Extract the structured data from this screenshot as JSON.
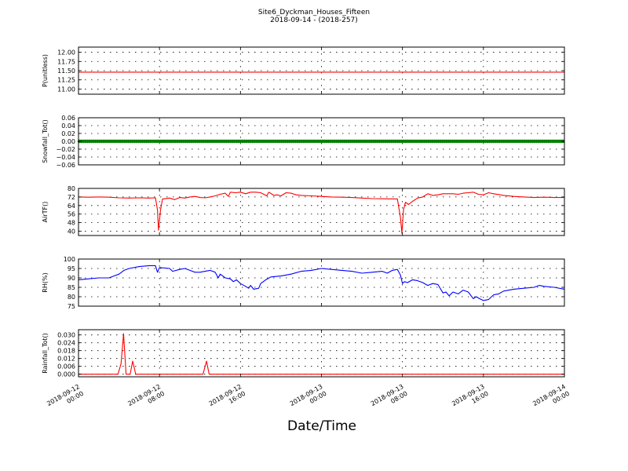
{
  "title": "Site6_Dyckman_Houses_Fifteen",
  "subtitle": "2018-09-14 - (2018-257)",
  "xlabel": "Date/Time",
  "colors": {
    "red": "#ff0000",
    "green": "#008000",
    "blue": "#0000ff",
    "axis": "#000000"
  },
  "chart_data": [
    {
      "type": "line",
      "ylabel": "P(unitless)",
      "ylim": [
        10.86,
        12.14
      ],
      "yticks": [
        11.0,
        11.25,
        11.5,
        11.75,
        12.0
      ],
      "ytick_labels": [
        "11.00",
        "11.25",
        "11.50",
        "11.75",
        "12.00"
      ],
      "grid": true,
      "series": [
        {
          "color": "#ff0000",
          "points": [
            [
              0,
              11.46
            ],
            [
              48,
              11.46
            ]
          ]
        }
      ]
    },
    {
      "type": "line",
      "ylabel": "Snowfall_Tot()",
      "ylim": [
        -0.06,
        0.06
      ],
      "yticks": [
        -0.06,
        -0.04,
        -0.02,
        0.0,
        0.02,
        0.04,
        0.06
      ],
      "ytick_labels": [
        "−0.06",
        "−0.04",
        "−0.02",
        "0.00",
        "0.02",
        "0.04",
        "0.06"
      ],
      "grid": true,
      "series": [
        {
          "color": "#008000",
          "dense_markers": true,
          "points": [
            [
              0,
              0.0
            ],
            [
              48,
              0.0
            ]
          ]
        }
      ]
    },
    {
      "type": "line",
      "ylabel": "AirTF()",
      "ylim": [
        36,
        80
      ],
      "yticks": [
        40,
        48,
        56,
        64,
        72,
        80
      ],
      "ytick_labels": [
        "40",
        "48",
        "56",
        "64",
        "72",
        "80"
      ],
      "grid": true,
      "series": [
        {
          "color": "#ff0000",
          "points": [
            [
              0,
              72.0
            ],
            [
              1,
              71.8
            ],
            [
              2,
              72.0
            ],
            [
              3,
              71.8
            ],
            [
              4,
              71.2
            ],
            [
              5,
              71.0
            ],
            [
              6,
              71.2
            ],
            [
              7,
              71.0
            ],
            [
              7.6,
              71.2
            ],
            [
              7.8,
              60.0
            ],
            [
              7.9,
              41.0
            ],
            [
              8.1,
              60.0
            ],
            [
              8.3,
              70.0
            ],
            [
              9,
              71.0
            ],
            [
              9.5,
              69.5
            ],
            [
              10,
              71.5
            ],
            [
              10.5,
              71.0
            ],
            [
              11,
              72.0
            ],
            [
              11.5,
              72.5
            ],
            [
              12,
              71.5
            ],
            [
              12.5,
              71.2
            ],
            [
              13,
              72.0
            ],
            [
              13.5,
              73.0
            ],
            [
              14,
              74.5
            ],
            [
              14.5,
              75.5
            ],
            [
              14.8,
              72.5
            ],
            [
              15,
              76.5
            ],
            [
              15.5,
              76.0
            ],
            [
              16,
              76.5
            ],
            [
              16.5,
              75.0
            ],
            [
              17,
              76.5
            ],
            [
              17.5,
              76.5
            ],
            [
              18,
              76.0
            ],
            [
              18.3,
              74.5
            ],
            [
              18.6,
              73.0
            ],
            [
              18.8,
              76.5
            ],
            [
              19.3,
              73.5
            ],
            [
              19.6,
              74.0
            ],
            [
              20,
              73.0
            ],
            [
              20.5,
              76.0
            ],
            [
              21,
              75.5
            ],
            [
              21.5,
              74.0
            ],
            [
              22,
              73.5
            ],
            [
              23,
              73.0
            ],
            [
              24,
              72.5
            ],
            [
              25,
              72.0
            ],
            [
              26,
              71.8
            ],
            [
              27,
              71.5
            ],
            [
              28,
              71.0
            ],
            [
              29,
              70.5
            ],
            [
              30,
              70.3
            ],
            [
              31,
              70.2
            ],
            [
              31.5,
              70.2
            ],
            [
              31.8,
              53.0
            ],
            [
              31.95,
              38.0
            ],
            [
              32.1,
              60.0
            ],
            [
              32.3,
              67.0
            ],
            [
              32.6,
              65.0
            ],
            [
              33,
              68.0
            ],
            [
              33.5,
              71.0
            ],
            [
              34,
              72.0
            ],
            [
              34.5,
              75.0
            ],
            [
              35,
              73.5
            ],
            [
              35.5,
              74.0
            ],
            [
              36,
              75.0
            ],
            [
              37,
              75.0
            ],
            [
              37.5,
              74.5
            ],
            [
              38,
              75.5
            ],
            [
              38.5,
              76.0
            ],
            [
              39,
              76.5
            ],
            [
              39.5,
              74.5
            ],
            [
              40,
              74.0
            ],
            [
              40.5,
              76.0
            ],
            [
              41,
              75.0
            ],
            [
              42,
              73.5
            ],
            [
              43,
              72.5
            ],
            [
              44,
              72.0
            ],
            [
              45,
              71.5
            ],
            [
              46,
              71.8
            ],
            [
              47,
              71.5
            ],
            [
              48,
              71.5
            ]
          ]
        }
      ]
    },
    {
      "type": "line",
      "ylabel": "RH(%)",
      "ylim": [
        75,
        100
      ],
      "yticks": [
        75,
        80,
        85,
        90,
        95,
        100
      ],
      "ytick_labels": [
        "75",
        "80",
        "85",
        "90",
        "95",
        "100"
      ],
      "grid": true,
      "series": [
        {
          "color": "#0000ff",
          "points": [
            [
              0,
              89.0
            ],
            [
              1,
              89.5
            ],
            [
              2,
              90.0
            ],
            [
              3,
              90.0
            ],
            [
              3.5,
              91.0
            ],
            [
              4,
              92.0
            ],
            [
              4.5,
              94.0
            ],
            [
              5,
              95.0
            ],
            [
              6,
              96.0
            ],
            [
              7,
              96.5
            ],
            [
              7.6,
              96.5
            ],
            [
              7.8,
              93.0
            ],
            [
              8,
              95.5
            ],
            [
              9,
              95.0
            ],
            [
              9.3,
              93.5
            ],
            [
              10,
              94.5
            ],
            [
              10.5,
              95.0
            ],
            [
              11,
              94.0
            ],
            [
              11.5,
              93.0
            ],
            [
              12,
              93.0
            ],
            [
              12.5,
              93.5
            ],
            [
              13,
              94.0
            ],
            [
              13.5,
              93.0
            ],
            [
              13.8,
              90.0
            ],
            [
              14,
              92.0
            ],
            [
              14.5,
              90.0
            ],
            [
              15,
              89.5
            ],
            [
              15.3,
              88.0
            ],
            [
              15.6,
              89.0
            ],
            [
              16,
              87.0
            ],
            [
              16.5,
              85.5
            ],
            [
              16.8,
              84.5
            ],
            [
              17,
              86.0
            ],
            [
              17.3,
              84.0
            ],
            [
              17.8,
              84.5
            ],
            [
              18,
              87.0
            ],
            [
              18.5,
              89.0
            ],
            [
              19,
              90.5
            ],
            [
              20,
              91.0
            ],
            [
              21,
              92.0
            ],
            [
              22,
              93.5
            ],
            [
              23,
              94.0
            ],
            [
              24,
              95.0
            ],
            [
              25,
              94.5
            ],
            [
              26,
              94.0
            ],
            [
              27,
              93.5
            ],
            [
              28,
              92.5
            ],
            [
              29,
              93.0
            ],
            [
              30,
              93.5
            ],
            [
              30.5,
              92.5
            ],
            [
              31,
              94.0
            ],
            [
              31.5,
              94.5
            ],
            [
              31.8,
              91.5
            ],
            [
              32,
              87.0
            ],
            [
              32.2,
              88.0
            ],
            [
              32.5,
              87.5
            ],
            [
              33,
              89.0
            ],
            [
              33.5,
              88.5
            ],
            [
              34,
              87.5
            ],
            [
              34.5,
              86.0
            ],
            [
              35,
              87.0
            ],
            [
              35.5,
              86.5
            ],
            [
              36,
              82.0
            ],
            [
              36.3,
              82.5
            ],
            [
              36.6,
              80.5
            ],
            [
              37,
              82.5
            ],
            [
              37.5,
              81.5
            ],
            [
              38,
              83.5
            ],
            [
              38.5,
              82.5
            ],
            [
              39,
              79.0
            ],
            [
              39.3,
              80.0
            ],
            [
              39.6,
              79.0
            ],
            [
              40,
              78.0
            ],
            [
              40.5,
              78.5
            ],
            [
              41,
              81.0
            ],
            [
              41.5,
              81.5
            ],
            [
              42,
              83.0
            ],
            [
              43,
              84.0
            ],
            [
              44,
              84.5
            ],
            [
              45,
              85.0
            ],
            [
              45.5,
              86.0
            ],
            [
              46,
              85.5
            ],
            [
              47,
              85.0
            ],
            [
              48,
              84.0
            ]
          ]
        }
      ]
    },
    {
      "type": "line",
      "ylabel": "Rainfall_Tot()",
      "ylim": [
        -0.002,
        0.034
      ],
      "yticks": [
        0.0,
        0.006,
        0.012,
        0.018,
        0.024,
        0.03
      ],
      "ytick_labels": [
        "0.000",
        "0.006",
        "0.012",
        "0.018",
        "0.024",
        "0.030"
      ],
      "grid": true,
      "series": [
        {
          "color": "#ff0000",
          "points": [
            [
              0,
              0.0
            ],
            [
              3.9,
              0.0
            ],
            [
              4.2,
              0.008
            ],
            [
              4.45,
              0.031
            ],
            [
              4.7,
              0.0
            ],
            [
              5.1,
              0.0
            ],
            [
              5.35,
              0.01
            ],
            [
              5.65,
              0.0
            ],
            [
              12.3,
              0.0
            ],
            [
              12.65,
              0.01
            ],
            [
              12.9,
              0.0
            ],
            [
              48,
              0.0
            ]
          ]
        }
      ]
    }
  ],
  "x_axis": {
    "xlim": [
      0,
      48
    ],
    "ticks": [
      0,
      8,
      16,
      24,
      32,
      40,
      48
    ],
    "tick_labels": [
      [
        "2018-09-12",
        "00:00"
      ],
      [
        "2018-09-12",
        "08:00"
      ],
      [
        "2018-09-12",
        "16:00"
      ],
      [
        "2018-09-13",
        "00:00"
      ],
      [
        "2018-09-13",
        "08:00"
      ],
      [
        "2018-09-13",
        "16:00"
      ],
      [
        "2018-09-14",
        "00:00"
      ]
    ]
  }
}
